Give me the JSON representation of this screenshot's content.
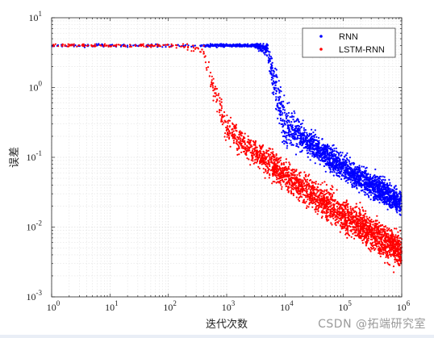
{
  "chart_data": {
    "type": "scatter",
    "title": "",
    "xlabel": "迭代次数",
    "ylabel": "误差",
    "xscale": "log",
    "yscale": "log",
    "xlim": [
      1,
      1000000
    ],
    "ylim": [
      0.001,
      10
    ],
    "grid": true,
    "legend_position": "top-right",
    "x_ticks": [
      {
        "value": 1,
        "base": "10",
        "exp": "0"
      },
      {
        "value": 10,
        "base": "10",
        "exp": "1"
      },
      {
        "value": 100,
        "base": "10",
        "exp": "2"
      },
      {
        "value": 1000,
        "base": "10",
        "exp": "3"
      },
      {
        "value": 10000,
        "base": "10",
        "exp": "4"
      },
      {
        "value": 100000,
        "base": "10",
        "exp": "5"
      },
      {
        "value": 1000000,
        "base": "10",
        "exp": "6"
      }
    ],
    "y_ticks": [
      {
        "value": 0.001,
        "base": "10",
        "exp": "-3"
      },
      {
        "value": 0.01,
        "base": "10",
        "exp": "-2"
      },
      {
        "value": 0.1,
        "base": "10",
        "exp": "-1"
      },
      {
        "value": 1,
        "base": "10",
        "exp": "0"
      },
      {
        "value": 10,
        "base": "10",
        "exp": "1"
      }
    ],
    "series": [
      {
        "name": "RNN",
        "color": "#0000ff",
        "curve": [
          [
            1,
            4.0
          ],
          [
            100,
            4.0
          ],
          [
            3000,
            4.0
          ],
          [
            5000,
            3.5
          ],
          [
            7000,
            0.9
          ],
          [
            10000,
            0.3
          ],
          [
            30000,
            0.15
          ],
          [
            100000,
            0.07
          ],
          [
            300000,
            0.04
          ],
          [
            1000000,
            0.022
          ]
        ],
        "spread_log10": [
          0.02,
          0.02,
          0.02,
          0.1,
          0.3,
          0.3,
          0.18,
          0.18,
          0.18,
          0.18
        ]
      },
      {
        "name": "LSTM-RNN",
        "color": "#ff0000",
        "curve": [
          [
            1,
            4.0
          ],
          [
            100,
            4.0
          ],
          [
            400,
            3.6
          ],
          [
            700,
            0.6
          ],
          [
            1000,
            0.25
          ],
          [
            3000,
            0.12
          ],
          [
            10000,
            0.055
          ],
          [
            100000,
            0.015
          ],
          [
            1000000,
            0.0045
          ]
        ],
        "spread_log10": [
          0.02,
          0.02,
          0.1,
          0.25,
          0.2,
          0.18,
          0.2,
          0.22,
          0.25
        ]
      }
    ]
  },
  "watermark": "CSDN @拓端研究室"
}
